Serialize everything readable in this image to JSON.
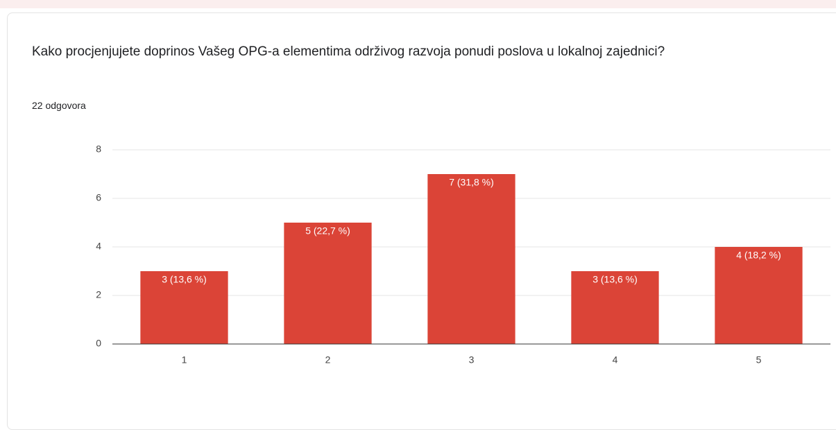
{
  "chart_data": {
    "type": "bar",
    "title": "Kako procjenjujete doprinos Vašeg OPG-a elementima održivog razvoja ponudi poslova u lokalnoj zajednici?",
    "subtitle": "22 odgovora",
    "categories": [
      "1",
      "2",
      "3",
      "4",
      "5"
    ],
    "values": [
      3,
      5,
      7,
      3,
      4
    ],
    "value_labels": [
      "3 (13,6 %)",
      "5 (22,7 %)",
      "7 (31,8 %)",
      "3 (13,6 %)",
      "4 (18,2 %)"
    ],
    "color": "#db4437",
    "ylim": [
      0,
      8
    ],
    "yticks": [
      0,
      2,
      4,
      6,
      8
    ],
    "grid": true
  }
}
